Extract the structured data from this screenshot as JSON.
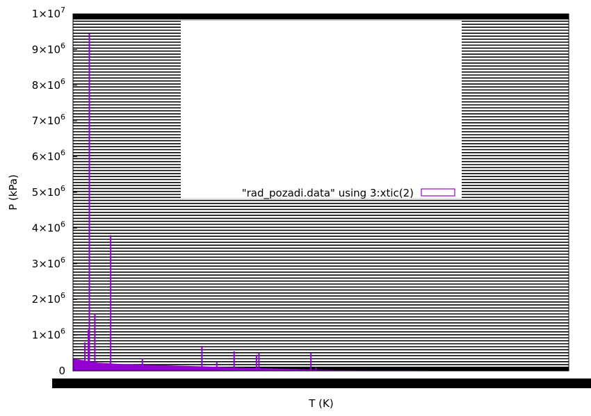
{
  "chart_data": {
    "type": "bar",
    "title": "",
    "xlabel": "T (K)",
    "ylabel": "P (kPa)",
    "ylim": [
      0,
      10000000
    ],
    "yticks": [
      {
        "value": 0,
        "mantissa": "0",
        "exp": ""
      },
      {
        "value": 1000000,
        "mantissa": "1×10",
        "exp": "6"
      },
      {
        "value": 2000000,
        "mantissa": "2×10",
        "exp": "6"
      },
      {
        "value": 3000000,
        "mantissa": "3×10",
        "exp": "6"
      },
      {
        "value": 4000000,
        "mantissa": "4×10",
        "exp": "6"
      },
      {
        "value": 5000000,
        "mantissa": "5×10",
        "exp": "6"
      },
      {
        "value": 6000000,
        "mantissa": "6×10",
        "exp": "6"
      },
      {
        "value": 7000000,
        "mantissa": "7×10",
        "exp": "6"
      },
      {
        "value": 8000000,
        "mantissa": "8×10",
        "exp": "6"
      },
      {
        "value": 9000000,
        "mantissa": "9×10",
        "exp": "6"
      },
      {
        "value": 10000000,
        "mantissa": "1×10",
        "exp": "7"
      }
    ],
    "grid": true,
    "legend_position": "center",
    "series": [
      {
        "name": "\"rad_pozadi.data\" using 3:xtic(2)",
        "color": "#9400d3",
        "baseline": [
          330000,
          280000,
          220000,
          200000,
          180000,
          170000,
          160000,
          150000,
          140000,
          130000,
          120000,
          110000,
          100000,
          90000,
          80000,
          70000,
          60000,
          50000,
          40000,
          30000,
          20000,
          15000,
          10000,
          8000,
          6000,
          5000,
          4000,
          3000,
          2000,
          1000
        ],
        "spikes": [
          {
            "x": 0.033,
            "value": 9450000
          },
          {
            "x": 0.031,
            "value": 1150000
          },
          {
            "x": 0.076,
            "value": 3800000
          },
          {
            "x": 0.075,
            "value": 250000
          },
          {
            "x": 0.077,
            "value": 180000
          },
          {
            "x": 0.075,
            "value": 250000
          },
          {
            "x": 0.024,
            "value": 800000
          },
          {
            "x": 0.044,
            "value": 1600000
          },
          {
            "x": 0.14,
            "value": 350000
          },
          {
            "x": 0.26,
            "value": 700000
          },
          {
            "x": 0.29,
            "value": 250000
          },
          {
            "x": 0.325,
            "value": 550000
          },
          {
            "x": 0.37,
            "value": 450000
          },
          {
            "x": 0.375,
            "value": 500000
          },
          {
            "x": 0.48,
            "value": 500000
          },
          {
            "x": 0.49,
            "value": 100000
          }
        ]
      }
    ]
  },
  "colors": {
    "series": "#9400d3",
    "grid": "#000000"
  }
}
